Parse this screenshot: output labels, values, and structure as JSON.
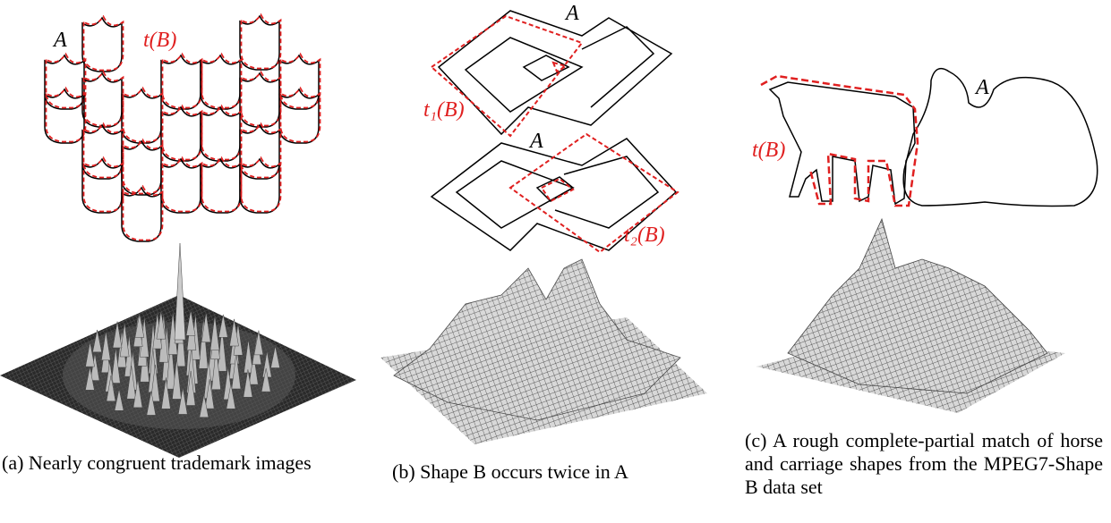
{
  "panels": [
    {
      "labels": [
        "A",
        "t(B)"
      ],
      "caption": "(a) Nearly congruent trademark images"
    },
    {
      "labels": [
        "A",
        "t₁(B)",
        "A",
        "t₂(B)"
      ],
      "caption": "(b) Shape B occurs twice in A"
    },
    {
      "labels": [
        "A",
        "t(B)"
      ],
      "caption": "(c) A rough complete-partial match of horse and carriage shapes from the MPEG7-Shape B data set"
    }
  ]
}
